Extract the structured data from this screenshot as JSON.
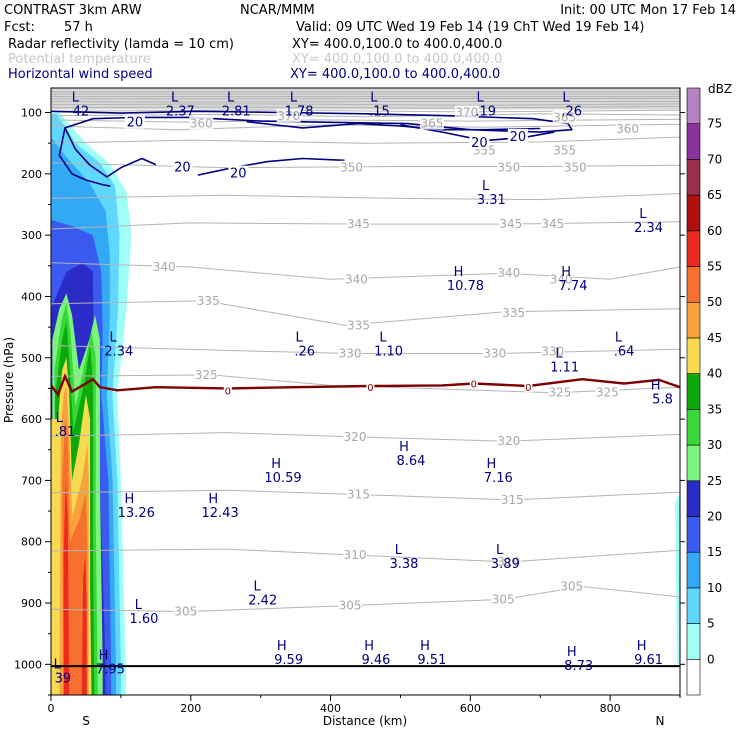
{
  "header": {
    "model": "CONTRAST  3km ARW",
    "center": "NCAR/MMM",
    "init": "Init: 00 UTC Mon 17 Feb 14",
    "fcst_label": "Fcst:",
    "fcst_value": "57 h",
    "valid": "Valid: 09 UTC Wed 19 Feb 14 (19 ChT Wed 19 Feb 14)",
    "fields": [
      {
        "name": "Radar reflectivity (lamda = 10 cm)",
        "xy": "XY= 400.0,100.0 to 400.0,400.0",
        "color": "#000000"
      },
      {
        "name": "Potential temperature",
        "xy": "XY= 400.0,100.0 to 400.0,400.0",
        "color": "#c8c8c8"
      },
      {
        "name": "Horizontal wind speed",
        "xy": "XY= 400.0,100.0 to 400.0,400.0",
        "color": "#000080"
      }
    ]
  },
  "chart_data": {
    "type": "heatmap",
    "title": "",
    "xlabel": "Distance (km)",
    "ylabel": "Pressure (hPa)",
    "xlim": [
      0,
      900
    ],
    "ylim": [
      1050,
      60
    ],
    "x_ticks": [
      0,
      200,
      400,
      600,
      800
    ],
    "y_ticks": [
      100,
      200,
      300,
      400,
      500,
      600,
      700,
      800,
      900,
      1000
    ],
    "x_end_labels": {
      "left": "S",
      "right": "N"
    },
    "colorbar": {
      "unit": "dBZ",
      "labels": [
        "0",
        "5",
        "10",
        "15",
        "20",
        "25",
        "30",
        "35",
        "40",
        "45",
        "50",
        "55",
        "60",
        "65",
        "70",
        "75"
      ],
      "colors": [
        "#ffffff",
        "#9ffff7",
        "#5fd7ff",
        "#33a8f5",
        "#3b5bf0",
        "#2b2bc8",
        "#7cf57c",
        "#39d839",
        "#0aaa0a",
        "#f8da50",
        "#f8a23c",
        "#f8702e",
        "#ee2a1e",
        "#b01010",
        "#9c2e4e",
        "#8c329c",
        "#b582c2"
      ]
    },
    "theta_labels": [
      {
        "value": "370",
        "x": 340,
        "p": 106
      },
      {
        "value": "370",
        "x": 595,
        "p": 100
      },
      {
        "value": "365",
        "x": 545,
        "p": 118
      },
      {
        "value": "365",
        "x": 735,
        "p": 108
      },
      {
        "value": "360",
        "x": 215,
        "p": 118
      },
      {
        "value": "360",
        "x": 825,
        "p": 127
      },
      {
        "value": "355",
        "x": 620,
        "p": 162
      },
      {
        "value": "355",
        "x": 735,
        "p": 162
      },
      {
        "value": "350",
        "x": 430,
        "p": 190
      },
      {
        "value": "350",
        "x": 655,
        "p": 190
      },
      {
        "value": "350",
        "x": 750,
        "p": 190
      },
      {
        "value": "345",
        "x": 440,
        "p": 282
      },
      {
        "value": "345",
        "x": 658,
        "p": 282
      },
      {
        "value": "345",
        "x": 718,
        "p": 282
      },
      {
        "value": "340",
        "x": 162,
        "p": 352
      },
      {
        "value": "340",
        "x": 437,
        "p": 372
      },
      {
        "value": "340",
        "x": 655,
        "p": 362
      },
      {
        "value": "340",
        "x": 730,
        "p": 372
      },
      {
        "value": "335",
        "x": 225,
        "p": 407
      },
      {
        "value": "335",
        "x": 440,
        "p": 447
      },
      {
        "value": "335",
        "x": 662,
        "p": 427
      },
      {
        "value": "330",
        "x": 428,
        "p": 493
      },
      {
        "value": "330",
        "x": 635,
        "p": 493
      },
      {
        "value": "330",
        "x": 718,
        "p": 490
      },
      {
        "value": "325",
        "x": 222,
        "p": 528
      },
      {
        "value": "325",
        "x": 728,
        "p": 557
      },
      {
        "value": "325",
        "x": 796,
        "p": 557
      },
      {
        "value": "320",
        "x": 435,
        "p": 629
      },
      {
        "value": "320",
        "x": 655,
        "p": 636
      },
      {
        "value": "315",
        "x": 440,
        "p": 723
      },
      {
        "value": "315",
        "x": 660,
        "p": 732
      },
      {
        "value": "310",
        "x": 435,
        "p": 822
      },
      {
        "value": "310",
        "x": 655,
        "p": 833
      },
      {
        "value": "305",
        "x": 193,
        "p": 914
      },
      {
        "value": "305",
        "x": 428,
        "p": 904
      },
      {
        "value": "305",
        "x": 647,
        "p": 894
      },
      {
        "value": "305",
        "x": 745,
        "p": 873
      }
    ],
    "wind_labels": [
      {
        "value": "20",
        "x": 120,
        "p": 115
      },
      {
        "value": "20",
        "x": 188,
        "p": 188
      },
      {
        "value": "20",
        "x": 268,
        "p": 198
      },
      {
        "value": "20",
        "x": 613,
        "p": 148
      },
      {
        "value": "20",
        "x": 668,
        "p": 138
      }
    ],
    "freezing_labels": [
      {
        "value": "0",
        "x": 253,
        "p": 553
      },
      {
        "value": "0",
        "x": 457,
        "p": 548
      },
      {
        "value": "0",
        "x": 605,
        "p": 542
      },
      {
        "value": "0",
        "x": 683,
        "p": 548
      }
    ],
    "extrema": [
      {
        "type": "L",
        "value": "42",
        "x": 43,
        "p": 85
      },
      {
        "type": "L",
        "value": "2.37",
        "x": 185,
        "p": 85
      },
      {
        "type": "L",
        "value": "2.81",
        "x": 265,
        "p": 85
      },
      {
        "type": "L",
        "value": "1.78",
        "x": 355,
        "p": 85
      },
      {
        "type": "L",
        "value": ".15",
        "x": 470,
        "p": 85
      },
      {
        "type": "L",
        "value": ".19",
        "x": 622,
        "p": 85
      },
      {
        "type": "L",
        "value": ".26",
        "x": 745,
        "p": 85
      },
      {
        "type": "L",
        "value": "3.31",
        "x": 630,
        "p": 230
      },
      {
        "type": "L",
        "value": "2.34",
        "x": 855,
        "p": 275
      },
      {
        "type": "H",
        "value": "10.78",
        "x": 593,
        "p": 370
      },
      {
        "type": "H",
        "value": "7.74",
        "x": 747,
        "p": 370
      },
      {
        "type": "L",
        "value": "2.34",
        "x": 97,
        "p": 477
      },
      {
        "type": "L",
        "value": ".26",
        "x": 363,
        "p": 477
      },
      {
        "type": "L",
        "value": "1.10",
        "x": 483,
        "p": 477
      },
      {
        "type": "L",
        "value": ".64",
        "x": 820,
        "p": 477
      },
      {
        "type": "L",
        "value": "1.11",
        "x": 735,
        "p": 503
      },
      {
        "type": "H",
        "value": "5.8",
        "x": 875,
        "p": 555
      },
      {
        "type": "L",
        "value": ".81",
        "x": 20,
        "p": 608
      },
      {
        "type": "H",
        "value": "8.64",
        "x": 515,
        "p": 655
      },
      {
        "type": "H",
        "value": "10.59",
        "x": 332,
        "p": 683
      },
      {
        "type": "H",
        "value": "7.16",
        "x": 640,
        "p": 683
      },
      {
        "type": "H",
        "value": "13.26",
        "x": 122,
        "p": 740
      },
      {
        "type": "H",
        "value": "12.43",
        "x": 242,
        "p": 740
      },
      {
        "type": "L",
        "value": "3.38",
        "x": 505,
        "p": 823
      },
      {
        "type": "L",
        "value": "3.89",
        "x": 650,
        "p": 823
      },
      {
        "type": "L",
        "value": "2.42",
        "x": 303,
        "p": 883
      },
      {
        "type": "L",
        "value": "1.60",
        "x": 133,
        "p": 913
      },
      {
        "type": "H",
        "value": "9.59",
        "x": 340,
        "p": 980
      },
      {
        "type": "H",
        "value": "9.46",
        "x": 465,
        "p": 980
      },
      {
        "type": "H",
        "value": "9.51",
        "x": 545,
        "p": 980
      },
      {
        "type": "H",
        "value": "8.73",
        "x": 755,
        "p": 990
      },
      {
        "type": "H",
        "value": "9.61",
        "x": 855,
        "p": 980
      },
      {
        "type": "L",
        "value": "39",
        "x": 17,
        "p": 1010
      },
      {
        "type": "H",
        "value": "7.95",
        "x": 85,
        "p": 995
      }
    ]
  }
}
